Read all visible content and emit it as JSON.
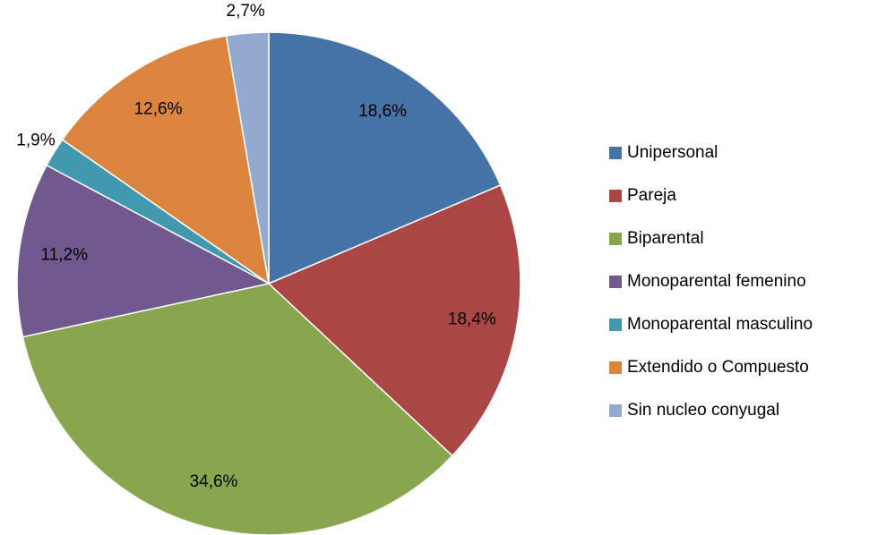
{
  "chart_data": {
    "type": "pie",
    "categories": [
      "Unipersonal",
      "Pareja",
      "Biparental",
      "Monoparental femenino",
      "Monoparental masculino",
      "Extendido o Compuesto",
      "Sin nucleo conyugal"
    ],
    "values": [
      18.6,
      18.4,
      34.6,
      11.2,
      1.9,
      12.6,
      2.7
    ],
    "value_labels": [
      "18,6%",
      "18,4%",
      "34,6%",
      "11,2%",
      "1,9%",
      "12,6%",
      "2,7%"
    ],
    "colors": [
      "#4572a7",
      "#aa4643",
      "#89a54e",
      "#71588f",
      "#4198af",
      "#db843d",
      "#93a9cf"
    ],
    "legend": "right"
  }
}
